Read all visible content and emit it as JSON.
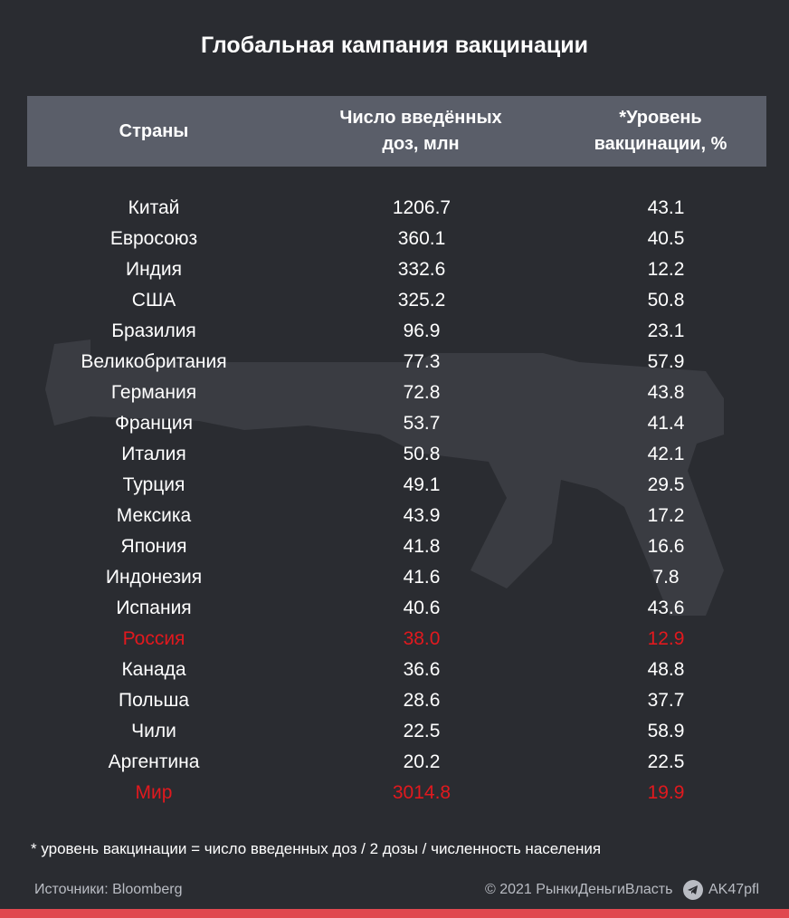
{
  "title": "Глобальная кампания вакцинации",
  "columns": {
    "country": "Страны",
    "doses_line1": "Число введённых",
    "doses_line2": "доз, млн",
    "rate_line1": "*Уровень",
    "rate_line2": "вакцинации, %"
  },
  "rows": [
    {
      "country": "Китай",
      "doses": "1206.7",
      "rate": "43.1",
      "highlight": false
    },
    {
      "country": "Евросоюз",
      "doses": "360.1",
      "rate": "40.5",
      "highlight": false
    },
    {
      "country": "Индия",
      "doses": "332.6",
      "rate": "12.2",
      "highlight": false
    },
    {
      "country": "США",
      "doses": "325.2",
      "rate": "50.8",
      "highlight": false
    },
    {
      "country": "Бразилия",
      "doses": "96.9",
      "rate": "23.1",
      "highlight": false
    },
    {
      "country": "Великобритания",
      "doses": "77.3",
      "rate": "57.9",
      "highlight": false
    },
    {
      "country": "Германия",
      "doses": "72.8",
      "rate": "43.8",
      "highlight": false
    },
    {
      "country": "Франция",
      "doses": "53.7",
      "rate": "41.4",
      "highlight": false
    },
    {
      "country": "Италия",
      "doses": "50.8",
      "rate": "42.1",
      "highlight": false
    },
    {
      "country": "Турция",
      "doses": "49.1",
      "rate": "29.5",
      "highlight": false
    },
    {
      "country": "Мексика",
      "doses": "43.9",
      "rate": "17.2",
      "highlight": false
    },
    {
      "country": "Япония",
      "doses": "41.8",
      "rate": "16.6",
      "highlight": false
    },
    {
      "country": "Индонезия",
      "doses": "41.6",
      "rate": "7.8",
      "highlight": false
    },
    {
      "country": "Испания",
      "doses": "40.6",
      "rate": "43.6",
      "highlight": false
    },
    {
      "country": "Россия",
      "doses": "38.0",
      "rate": "12.9",
      "highlight": true
    },
    {
      "country": "Канада",
      "doses": "36.6",
      "rate": "48.8",
      "highlight": false
    },
    {
      "country": "Польша",
      "doses": "28.6",
      "rate": "37.7",
      "highlight": false
    },
    {
      "country": "Чили",
      "doses": "22.5",
      "rate": "58.9",
      "highlight": false
    },
    {
      "country": "Аргентина",
      "doses": "20.2",
      "rate": "22.5",
      "highlight": false
    },
    {
      "country": "Мир",
      "doses": "3014.8",
      "rate": "19.9",
      "highlight": true
    }
  ],
  "footnote": "* уровень вакцинации = число введенных доз / 2 дозы / численность населения",
  "sources": "Источники:  Bloomberg",
  "copyright": "© 2021  РынкиДеньгиВласть",
  "handle": "AK47pfl",
  "colors": {
    "background": "#2a2c31",
    "header": "#5a5e69",
    "highlight": "#e1191e",
    "bottom_bar": "#e0484f"
  },
  "icons": {
    "watermark": "rifle-silhouette",
    "telegram": "telegram-icon"
  }
}
